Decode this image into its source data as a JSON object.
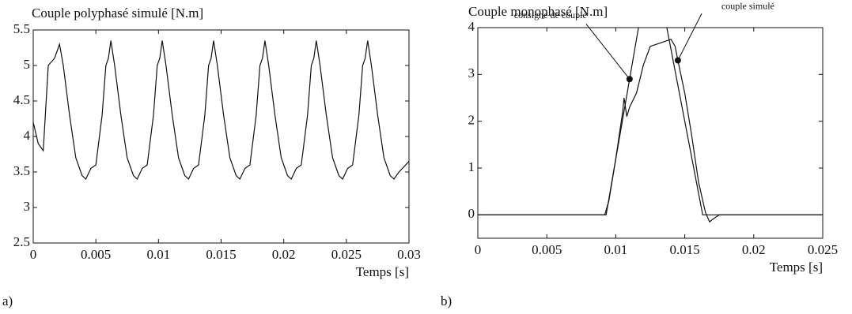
{
  "chart_data": [
    {
      "type": "line",
      "panel_label": "a)",
      "title": "Couple polyphasé simulé [N.m]",
      "x_label": "Temps [s]",
      "xlim": [
        0,
        0.03
      ],
      "xticks": [
        0,
        0.005,
        0.01,
        0.015,
        0.02,
        0.025,
        0.03
      ],
      "ylim": [
        2.5,
        5.5
      ],
      "yticks": [
        2.5,
        3,
        3.5,
        4,
        4.5,
        5,
        5.5
      ],
      "grid": false,
      "series": [
        {
          "color": "#111111",
          "x": [
            0,
            0.0004,
            0.0008,
            0.0012,
            0.0017,
            0.0021,
            0.0024,
            0.0029,
            0.0034,
            0.0039,
            0.0042,
            0.0046,
            0.005,
            0.0055,
            0.0058,
            0.006,
            0.0062,
            0.0065,
            0.007,
            0.0075,
            0.008,
            0.0083,
            0.0087,
            0.0091,
            0.0096,
            0.0099,
            0.0101,
            0.0103,
            0.0106,
            0.0111,
            0.0116,
            0.0121,
            0.0124,
            0.0128,
            0.0132,
            0.0137,
            0.014,
            0.0142,
            0.0144,
            0.0147,
            0.0152,
            0.0157,
            0.0162,
            0.0165,
            0.0169,
            0.0173,
            0.0178,
            0.0181,
            0.0183,
            0.0185,
            0.0188,
            0.0193,
            0.0198,
            0.0203,
            0.0206,
            0.021,
            0.0214,
            0.0219,
            0.0222,
            0.0224,
            0.0226,
            0.0229,
            0.0234,
            0.0239,
            0.0244,
            0.0247,
            0.0251,
            0.0255,
            0.026,
            0.0263,
            0.0265,
            0.0267,
            0.027,
            0.0275,
            0.028,
            0.0285,
            0.0288,
            0.0292,
            0.03
          ],
          "values": [
            4.2,
            3.9,
            3.8,
            5.0,
            5.1,
            5.3,
            5.0,
            4.3,
            3.7,
            3.45,
            3.4,
            3.55,
            3.6,
            4.3,
            5.0,
            5.1,
            5.35,
            5.0,
            4.3,
            3.7,
            3.45,
            3.4,
            3.55,
            3.6,
            4.3,
            5.0,
            5.1,
            5.35,
            5.0,
            4.3,
            3.7,
            3.45,
            3.4,
            3.55,
            3.6,
            4.3,
            5.0,
            5.1,
            5.35,
            5.0,
            4.3,
            3.7,
            3.45,
            3.4,
            3.55,
            3.6,
            4.3,
            5.0,
            5.1,
            5.35,
            5.0,
            4.3,
            3.7,
            3.45,
            3.4,
            3.55,
            3.6,
            4.3,
            5.0,
            5.1,
            5.35,
            5.0,
            4.3,
            3.7,
            3.45,
            3.4,
            3.55,
            3.6,
            4.3,
            5.0,
            5.1,
            5.35,
            5.0,
            4.3,
            3.7,
            3.45,
            3.4,
            3.5,
            3.65
          ]
        }
      ]
    },
    {
      "type": "line",
      "panel_label": "b)",
      "title": "Couple monophasé [N.m]",
      "x_label": "Temps [s]",
      "xlim": [
        0,
        0.025
      ],
      "xticks": [
        0,
        0.005,
        0.01,
        0.015,
        0.02,
        0.025
      ],
      "ylim": [
        -0.5,
        4
      ],
      "yticks": [
        0,
        1,
        2,
        3,
        4
      ],
      "grid": false,
      "series": [
        {
          "name": "consigne de couple",
          "color": "#111111",
          "x": [
            0,
            0.0093,
            0.01262,
            0.0163,
            0.025
          ],
          "values": [
            0,
            0,
            5.66,
            0,
            0
          ]
        },
        {
          "name": "couple simulé",
          "color": "#111111",
          "x": [
            0,
            0.0092,
            0.0095,
            0.01,
            0.0105,
            0.0106,
            0.0108,
            0.011,
            0.0115,
            0.012,
            0.0125,
            0.013,
            0.0135,
            0.014,
            0.0143,
            0.0145,
            0.015,
            0.0155,
            0.016,
            0.0165,
            0.0168,
            0.017,
            0.0175,
            0.025
          ],
          "values": [
            0,
            0,
            0.3,
            1.2,
            2.2,
            2.5,
            2.1,
            2.3,
            2.6,
            3.2,
            3.6,
            3.65,
            3.7,
            3.75,
            3.6,
            3.3,
            2.6,
            1.7,
            0.7,
            0.05,
            -0.15,
            -0.1,
            0,
            0
          ]
        }
      ],
      "annotations": [
        {
          "text": "consigne de couple",
          "x": 0.011,
          "y": 2.9
        },
        {
          "text": "couple simulé",
          "x": 0.0145,
          "y": 3.3
        }
      ]
    }
  ]
}
